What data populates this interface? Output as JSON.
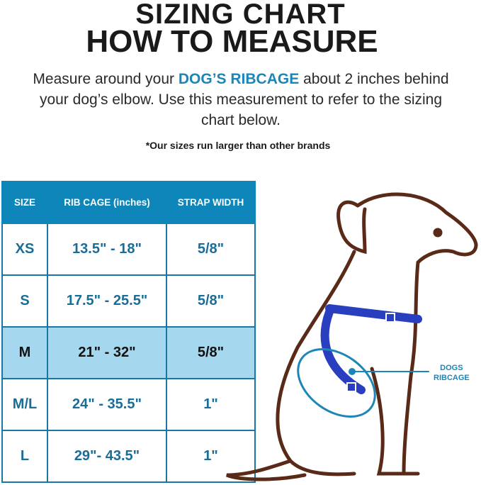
{
  "title_line1": "SIZING CHART",
  "title_line2": "HOW TO MEASURE",
  "intro": {
    "before": "Measure around your ",
    "highlight": "DOG’S RIBCAGE",
    "after": " about 2 inches behind your dog’s  elbow. Use this measurement to refer to the sizing chart below."
  },
  "note": "*Our sizes run larger than other brands",
  "table": {
    "headers": [
      "SIZE",
      "RIB CAGE (inches)",
      "STRAP WIDTH"
    ],
    "rows": [
      [
        "XS",
        "13.5\" - 18\"",
        "5/8\""
      ],
      [
        "S",
        "17.5\" - 25.5\"",
        "5/8\""
      ],
      [
        "M",
        "21\" - 32\"",
        "5/8\""
      ],
      [
        "M/L",
        "24\" - 35.5\"",
        "1\""
      ],
      [
        "L",
        "29\"- 43.5\"",
        "1\""
      ]
    ],
    "highlighted_row": "M"
  },
  "callout": {
    "line1": "DOGS",
    "line2": "RIBCAGE"
  },
  "colors": {
    "header": "#0f86b9",
    "text_blue": "#1a6d98",
    "highlight_row": "#a5d8ee",
    "harness": "#2a3fc0",
    "outline": "#5a2a18"
  }
}
